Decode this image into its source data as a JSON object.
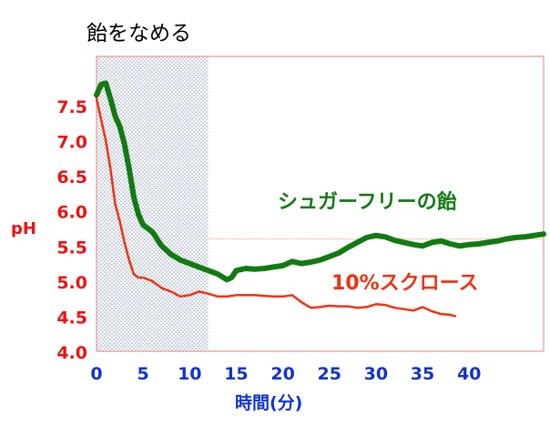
{
  "chart_data": {
    "type": "line",
    "title": "飴をなめる",
    "xlabel": "時間(分)",
    "ylabel": "pH",
    "xlim": [
      0,
      48
    ],
    "ylim": [
      4.0,
      8.2
    ],
    "x_ticks": [
      0,
      5,
      10,
      15,
      20,
      25,
      30,
      35,
      40
    ],
    "y_ticks": [
      4.0,
      4.5,
      5.0,
      5.5,
      6.0,
      6.5,
      7.0,
      7.5
    ],
    "shaded_interval": [
      0,
      12
    ],
    "reference_line_y": 5.6,
    "grid": false,
    "series": [
      {
        "name": "シュガーフリーの飴",
        "color": "#117a11",
        "x": [
          0,
          0.5,
          1,
          1.5,
          2,
          2.5,
          3,
          3.5,
          4,
          4.5,
          5,
          6,
          7,
          8,
          9,
          10,
          11,
          12,
          13,
          14,
          14.5,
          15,
          16,
          17,
          18,
          19,
          20,
          21,
          22,
          23,
          24,
          25,
          26,
          27,
          28,
          29,
          30,
          31,
          32,
          33,
          34,
          35,
          36,
          37,
          38,
          39,
          40,
          41,
          42,
          43,
          44,
          45,
          46,
          47,
          48
        ],
        "values": [
          7.65,
          7.8,
          7.82,
          7.6,
          7.35,
          7.2,
          6.95,
          6.6,
          6.2,
          5.95,
          5.8,
          5.7,
          5.5,
          5.38,
          5.3,
          5.25,
          5.2,
          5.15,
          5.1,
          5.02,
          5.05,
          5.15,
          5.18,
          5.17,
          5.18,
          5.2,
          5.22,
          5.28,
          5.25,
          5.27,
          5.3,
          5.35,
          5.4,
          5.48,
          5.55,
          5.62,
          5.65,
          5.63,
          5.58,
          5.55,
          5.52,
          5.5,
          5.55,
          5.57,
          5.53,
          5.5,
          5.52,
          5.53,
          5.55,
          5.57,
          5.6,
          5.62,
          5.63,
          5.65,
          5.67
        ]
      },
      {
        "name": "10%スクロース",
        "color": "#ee3311",
        "x": [
          0,
          0.5,
          1,
          1.5,
          2,
          2.5,
          3,
          3.5,
          4,
          4.5,
          5,
          6,
          7,
          8,
          9,
          10,
          11,
          12,
          13,
          14,
          15,
          16,
          17,
          18,
          19,
          20,
          21,
          22,
          23,
          24,
          25,
          26,
          27,
          28,
          29,
          30,
          31,
          32,
          33,
          34,
          35,
          36,
          37,
          38,
          38.5
        ],
        "values": [
          7.6,
          7.3,
          7.0,
          6.6,
          6.1,
          5.85,
          5.55,
          5.3,
          5.1,
          5.05,
          5.05,
          5.0,
          4.9,
          4.85,
          4.78,
          4.8,
          4.85,
          4.82,
          4.78,
          4.78,
          4.8,
          4.8,
          4.8,
          4.79,
          4.78,
          4.78,
          4.8,
          4.7,
          4.62,
          4.63,
          4.65,
          4.64,
          4.64,
          4.62,
          4.63,
          4.67,
          4.66,
          4.62,
          4.6,
          4.58,
          4.63,
          4.57,
          4.53,
          4.52,
          4.5
        ]
      }
    ]
  }
}
